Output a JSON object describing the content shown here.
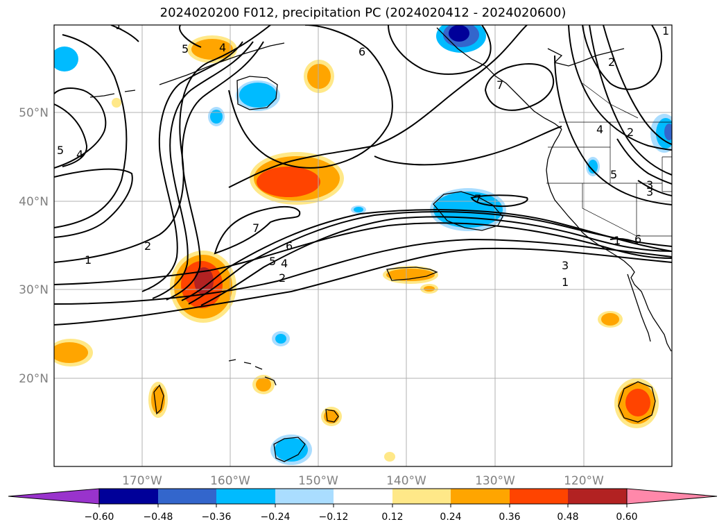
{
  "title": "2024020200 F012, precipitation PC (2024020412 - 2024020600)",
  "axes": {
    "lon_ticks": [
      "170°W",
      "160°W",
      "150°W",
      "140°W",
      "130°W",
      "120°W"
    ],
    "lat_ticks": [
      "50°N",
      "40°N",
      "30°N",
      "20°N"
    ],
    "grid": true
  },
  "contour_labels": [
    "1",
    "2",
    "3",
    "4",
    "5",
    "6",
    "7",
    "1",
    "2",
    "4",
    "5",
    "6",
    "7",
    "5",
    "4",
    "2",
    "1",
    "3",
    "1",
    "2",
    "5",
    "4",
    "3",
    "7",
    "6",
    "1"
  ],
  "colorbar": {
    "ticks": [
      "−0.60",
      "−0.48",
      "−0.36",
      "−0.24",
      "−0.12",
      "0.12",
      "0.24",
      "0.36",
      "0.48",
      "0.60"
    ],
    "colors": [
      "#9933cc",
      "#000099",
      "#3366cc",
      "#00bbff",
      "#aaddff",
      "#ffffff",
      "#ffe888",
      "#ffa500",
      "#ff4400",
      "#b22222",
      "#ff88aa"
    ]
  },
  "fill_colors": {
    "neg_light": "#aaddff",
    "neg_mid": "#00bbff",
    "neg_strong": "#3366cc",
    "neg_max": "#000099",
    "pos_light": "#ffe888",
    "pos_mid": "#ffa500",
    "pos_strong": "#ff4400",
    "pos_max": "#b22222"
  }
}
